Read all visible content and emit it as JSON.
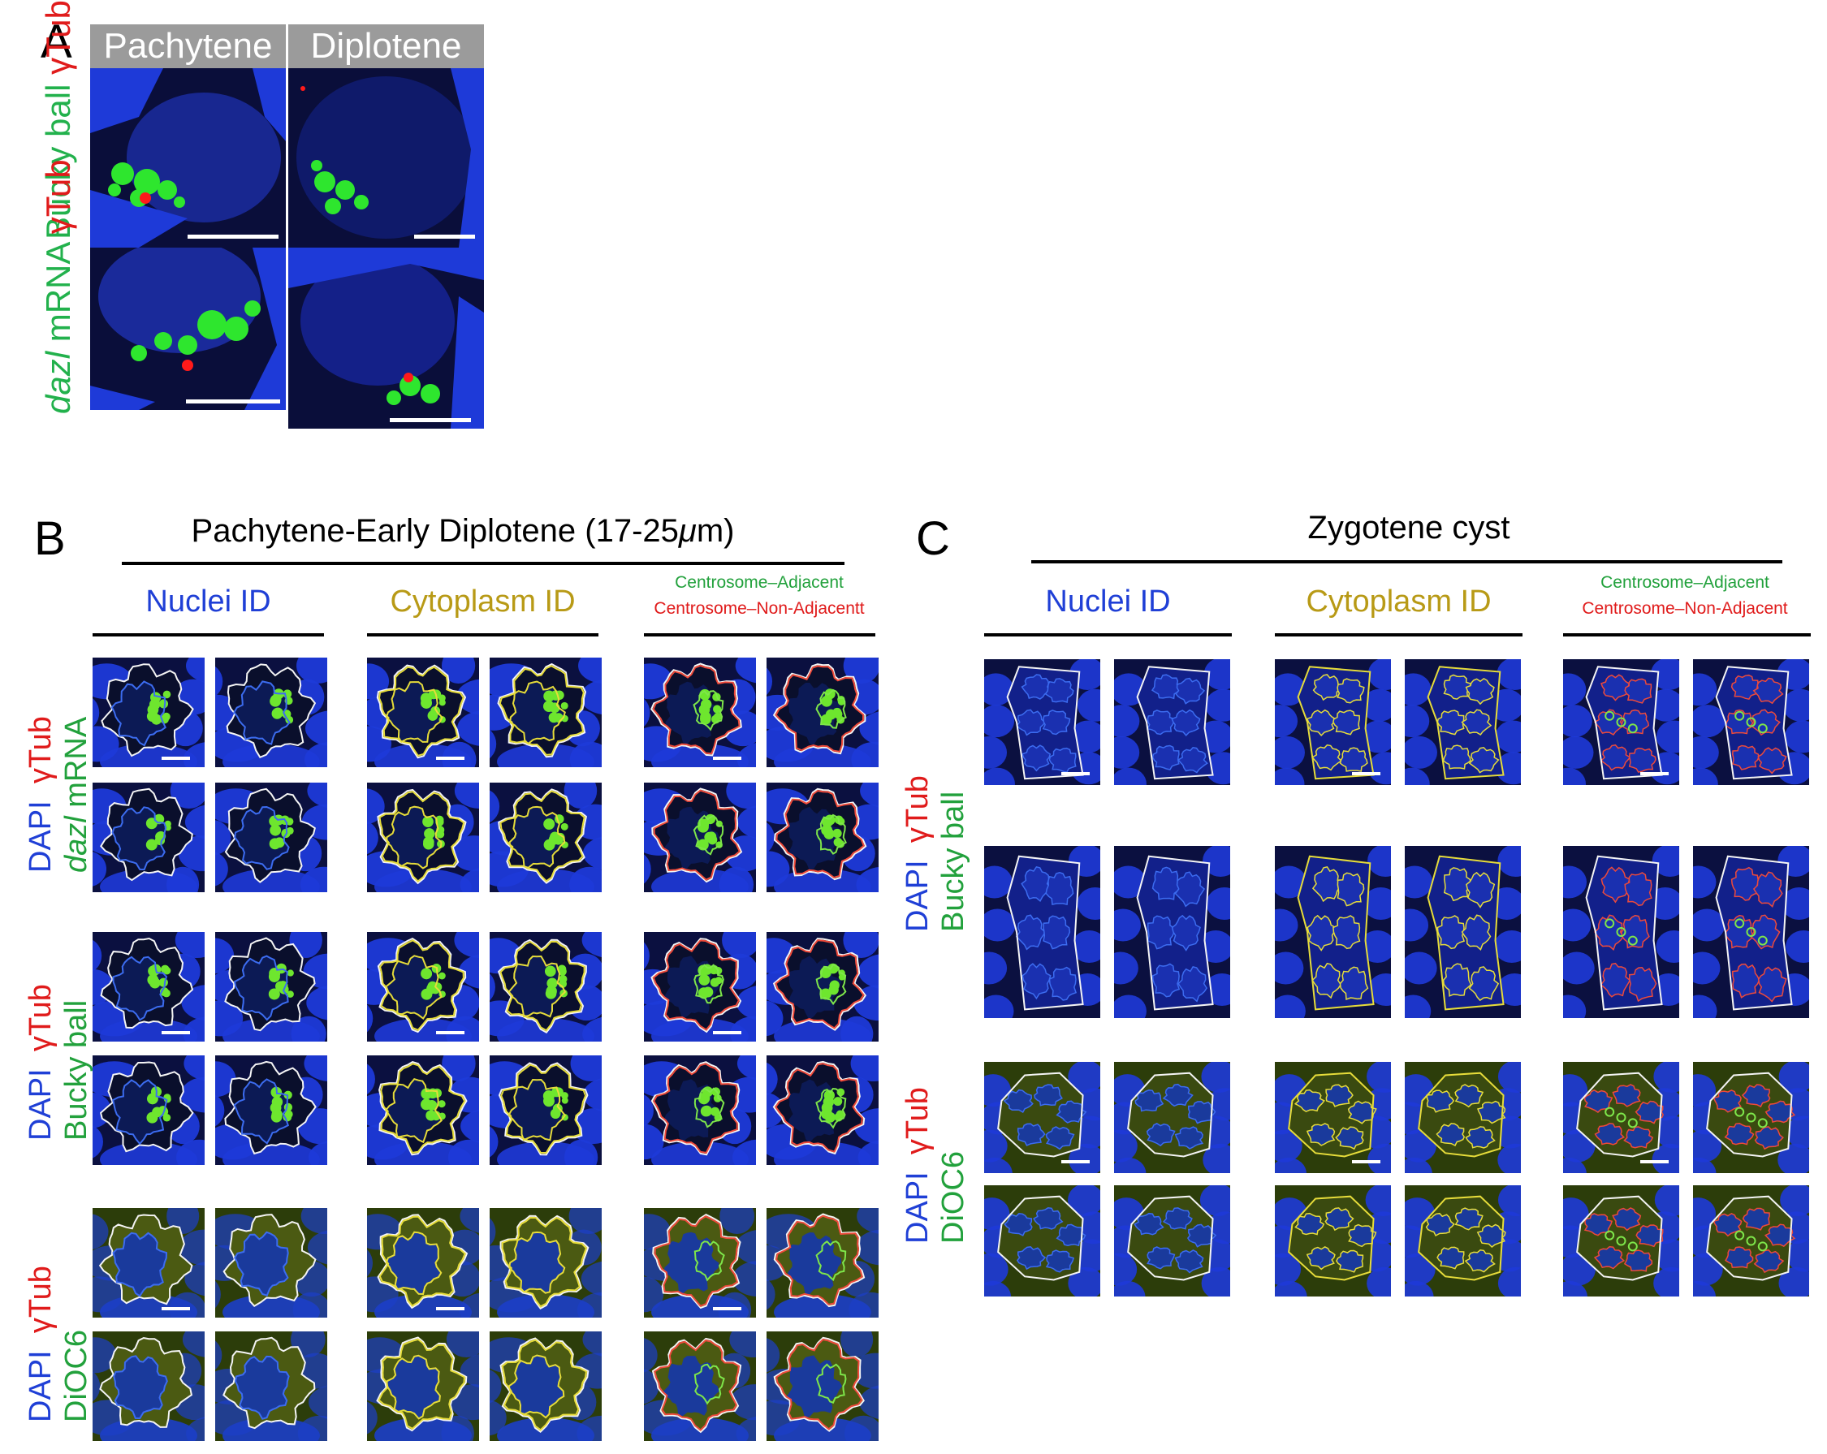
{
  "panel_a": {
    "letter": "A",
    "headers": [
      "Pachytene",
      "Diplotene"
    ],
    "row_labels": [
      {
        "parts": [
          {
            "text": "Bucky ball",
            "color": "#22b14c",
            "italic": false
          },
          {
            "text": " γTub",
            "color": "#e01b1b",
            "italic": false
          }
        ]
      },
      {
        "parts": [
          {
            "text": "dazl",
            "color": "#22b14c",
            "italic": true
          },
          {
            "text": " mRNA",
            "color": "#22b14c",
            "italic": false
          },
          {
            "text": " γTub",
            "color": "#e01b1b",
            "italic": false
          }
        ]
      }
    ]
  },
  "panel_b": {
    "letter": "B",
    "title_pre": "Pachytene-Early Diplotene (17-25",
    "title_mu": "μ",
    "title_post": "m)",
    "col_nuclei": "Nuclei ID",
    "col_cytoplasm": "Cytoplasm ID",
    "col_adjacent": "Centrosome–Adjacent",
    "col_nonadjacent": "Centrosome–Non-Adjacentt",
    "row_labels": {
      "dazl": {
        "dapi": "DAPI",
        "tub": "γTub",
        "dazl": "dazl",
        "mrna": " mRNA"
      },
      "bucky": {
        "dapi": "DAPI",
        "tub": "γTub",
        "bucky": "Bucky ball"
      },
      "dioc": {
        "dapi": "DAPI",
        "tub": "γTub",
        "dioc": "DiOC6"
      }
    }
  },
  "panel_c": {
    "letter": "C",
    "title": "Zygotene cyst",
    "col_nuclei": "Nuclei ID",
    "col_cytoplasm": "Cytoplasm ID",
    "col_adjacent": "Centrosome–Adjacent",
    "col_nonadjacent": "Centrosome–Non-Adjacent",
    "row_labels": {
      "bucky": {
        "dapi": "DAPI",
        "tub": "γTub",
        "bucky": "Bucky ball"
      },
      "dioc": {
        "dapi": "DAPI",
        "tub": "γTub",
        "dioc": "DiOC6"
      }
    }
  },
  "colors": {
    "dapi_blue": "#1f3fd6",
    "gfp_green": "#22b14c",
    "tub_red": "#e01b1b",
    "nuclei_blue": "#1f3fd6",
    "cytoplasm_gold": "#b89a16",
    "header_gray": "#9b9b9b"
  }
}
